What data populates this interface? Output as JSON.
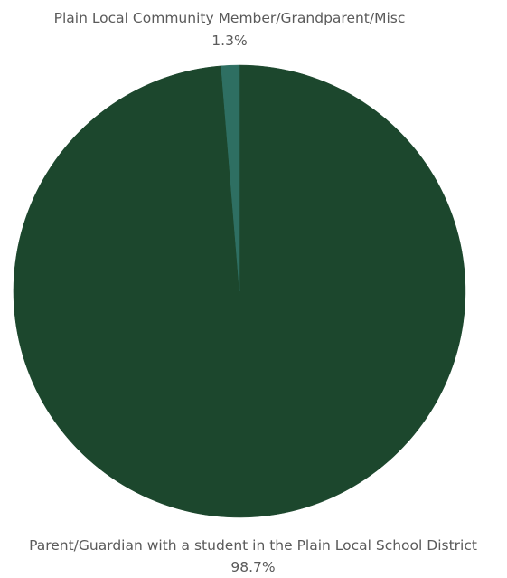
{
  "chart_data": {
    "type": "pie",
    "slices": [
      {
        "label": "Parent/Guardian with a student in the Plain Local School District",
        "value": 98.7,
        "value_label": "98.7%",
        "color": "#1c472d"
      },
      {
        "label": "Plain Local Community Member/Grandparent/Misc",
        "value": 1.3,
        "value_label": "1.3%",
        "color": "#2e6f62"
      }
    ],
    "start_angle_deg": 0,
    "direction": "clockwise"
  }
}
